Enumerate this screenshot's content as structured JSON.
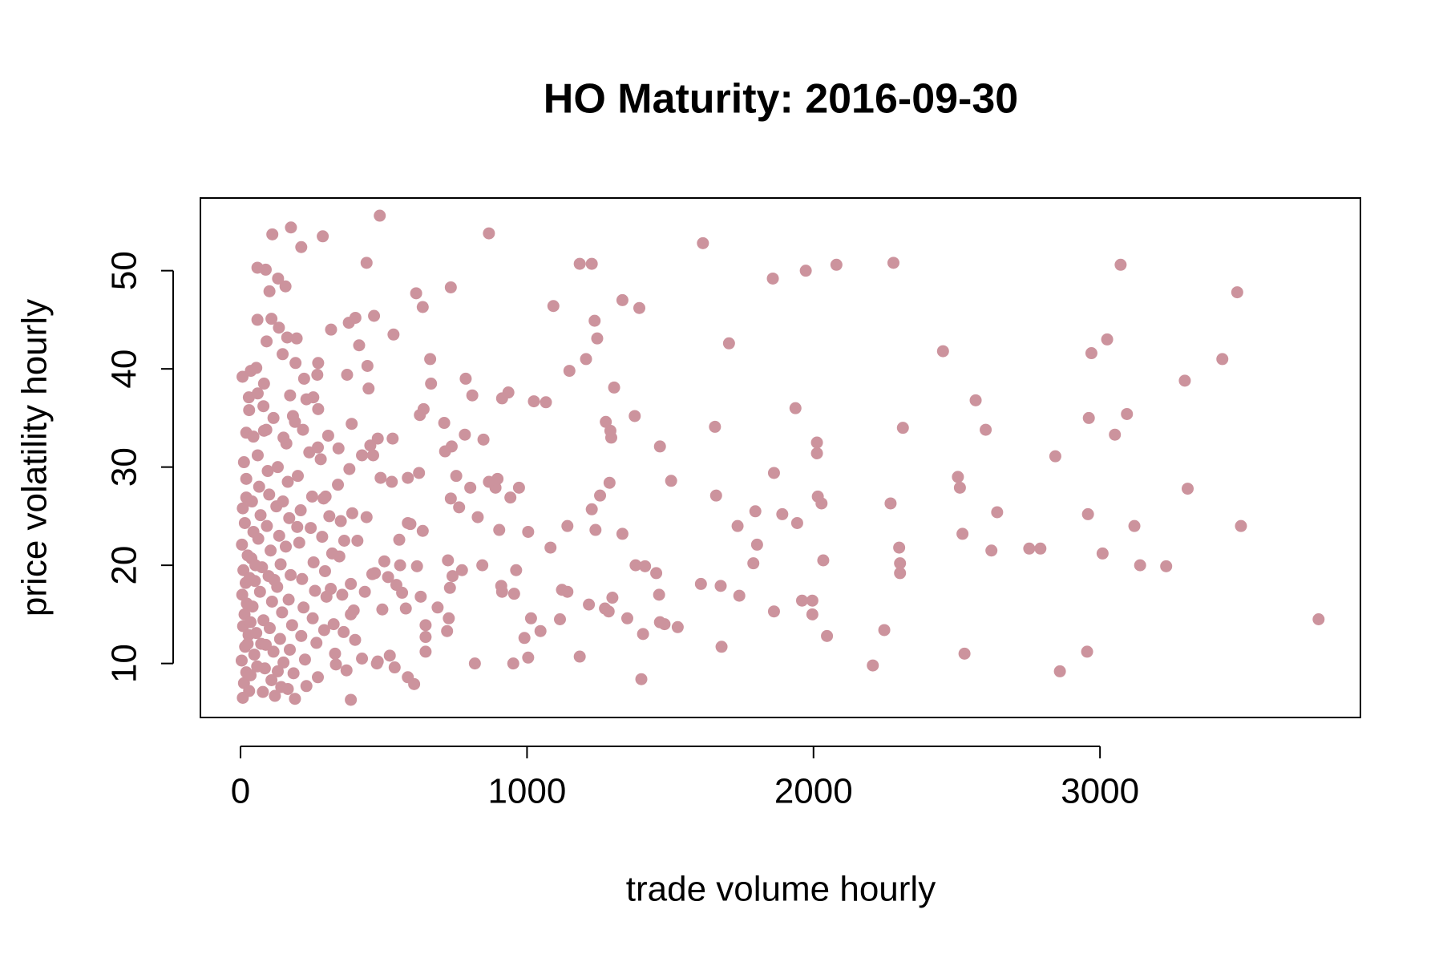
{
  "chart_data": {
    "type": "scatter",
    "title": "HO Maturity: 2016-09-30",
    "x_label": "trade volume hourly",
    "y_label": "price volatility hourly",
    "color": "#cc939d",
    "xlim": [
      -140,
      3909
    ],
    "ylim": [
      4.5,
      57.4
    ],
    "xticks": [
      0,
      1000,
      2000,
      3000
    ],
    "yticks": [
      10,
      20,
      30,
      40,
      50
    ],
    "x": [
      3763,
      3492,
      3479,
      3427,
      3306,
      3296,
      3231,
      3140,
      3120,
      3094,
      3072,
      3052,
      3025,
      3009,
      2970,
      2961,
      2958,
      2955,
      2860,
      2844,
      2792,
      2753,
      2641,
      2621,
      2601,
      2566,
      2527,
      2520,
      2511,
      2504,
      2452,
      2279,
      2312,
      2302,
      2302,
      2299,
      2269,
      2247,
      2207,
      2080,
      2047,
      2034,
      2028,
      2015,
      2012,
      2012,
      1996,
      1996,
      1973,
      1960,
      1943,
      1937,
      1891,
      1862,
      1862,
      1858,
      1803,
      1797,
      1790,
      1741,
      1735,
      1705,
      1679,
      1676,
      1660,
      1656,
      1614,
      1607,
      1526,
      1503,
      1480,
      1464,
      1464,
      1461,
      1451,
      1412,
      1405,
      1399,
      1392,
      1379,
      1376,
      1350,
      1333,
      1333,
      1304,
      1298,
      1294,
      1291,
      1288,
      1285,
      1275,
      1272,
      1255,
      1245,
      1236,
      1239,
      1226,
      1226,
      1216,
      1206,
      1184,
      1184,
      1148,
      1141,
      1141,
      1122,
      1115,
      1092,
      1082,
      1066,
      1047,
      1024,
      1014,
      1004,
      1004,
      991,
      972,
      962,
      952,
      955,
      942,
      935,
      913,
      910,
      913,
      903,
      897,
      890,
      867,
      867,
      844,
      848,
      828,
      818,
      809,
      802,
      786,
      783,
      773,
      763,
      753,
      740,
      737,
      734,
      734,
      731,
      727,
      721,
      724,
      714,
      711,
      688,
      662,
      665,
      646,
      646,
      646,
      636,
      639,
      636,
      629,
      626,
      623,
      613,
      616,
      606,
      593,
      584,
      584,
      584,
      577,
      564,
      557,
      554,
      544,
      534,
      531,
      538,
      528,
      521,
      515,
      502,
      495,
      489,
      486,
      479,
      479,
      476,
      469,
      466,
      463,
      460,
      453,
      434,
      440,
      440,
      443,
      447,
      424,
      424,
      414,
      408,
      401,
      388,
      385,
      378,
      385,
      372,
      362,
      333,
      316,
      297,
      287,
      268,
      212,
      176,
      111,
      157,
      131,
      101,
      88,
      59,
      59,
      91,
      108,
      134,
      163,
      196,
      147,
      192,
      36,
      7,
      82,
      173,
      254,
      29,
      20,
      82,
      183,
      218,
      306,
      342,
      271,
      222,
      271,
      12,
      20,
      8,
      15,
      5,
      25,
      10,
      18,
      6,
      22,
      14,
      9,
      28,
      16,
      4,
      20,
      12,
      30,
      8,
      40,
      45,
      38,
      50,
      42,
      55,
      48,
      35,
      60,
      65,
      70,
      62,
      75,
      68,
      80,
      72,
      85,
      78,
      90,
      95,
      100,
      92,
      105,
      98,
      110,
      102,
      115,
      108,
      120,
      130,
      125,
      135,
      140,
      128,
      145,
      138,
      150,
      142,
      160,
      165,
      170,
      158,
      175,
      168,
      180,
      172,
      185,
      190,
      200,
      210,
      205,
      215,
      220,
      212,
      225,
      230,
      240,
      250,
      245,
      255,
      260,
      252,
      265,
      270,
      280,
      290,
      285,
      295,
      300,
      292,
      310,
      320,
      315,
      325,
      330,
      340,
      350,
      345,
      355,
      360,
      370,
      380,
      390,
      385,
      395,
      400,
      60,
      80,
      115,
      150,
      190,
      230,
      270,
      30,
      55,
      45,
      20,
      35,
      25,
      58,
      88,
      130,
      165,
      32,
      52,
      118,
      148,
      198
    ],
    "values": [
      14.5,
      24.0,
      47.8,
      41.0,
      27.8,
      38.8,
      19.9,
      20.0,
      24.0,
      35.4,
      50.6,
      33.3,
      43.0,
      21.2,
      41.6,
      35.0,
      25.2,
      11.2,
      9.2,
      31.1,
      21.7,
      21.7,
      25.4,
      21.5,
      33.8,
      36.8,
      11.0,
      23.2,
      27.9,
      29.0,
      41.8,
      50.8,
      34.0,
      19.2,
      20.2,
      21.8,
      26.3,
      13.4,
      9.8,
      50.6,
      12.8,
      20.5,
      26.3,
      27.0,
      31.4,
      32.5,
      15.0,
      16.4,
      50.0,
      16.4,
      24.3,
      36.0,
      25.2,
      29.4,
      15.3,
      49.2,
      22.1,
      25.5,
      20.2,
      16.9,
      24.0,
      42.6,
      11.7,
      17.9,
      27.1,
      34.1,
      52.8,
      18.1,
      13.7,
      28.6,
      14.0,
      14.2,
      32.1,
      17.0,
      19.2,
      19.9,
      13.0,
      8.4,
      46.2,
      20.0,
      35.2,
      14.6,
      23.2,
      47.0,
      38.1,
      16.7,
      33.0,
      33.7,
      28.4,
      15.3,
      34.6,
      15.6,
      27.1,
      43.1,
      44.9,
      23.6,
      25.7,
      50.7,
      16.0,
      41.0,
      50.7,
      10.7,
      39.8,
      24.0,
      17.3,
      17.5,
      14.5,
      46.4,
      21.8,
      36.6,
      13.3,
      36.7,
      14.6,
      10.6,
      23.4,
      12.6,
      27.9,
      19.5,
      10.0,
      17.1,
      26.9,
      37.6,
      37.0,
      17.9,
      17.3,
      23.6,
      28.8,
      27.9,
      28.5,
      53.8,
      20.0,
      32.8,
      24.9,
      10.0,
      37.3,
      27.9,
      39.0,
      33.3,
      19.5,
      25.9,
      29.1,
      18.9,
      32.1,
      48.3,
      26.8,
      17.7,
      14.6,
      13.3,
      20.5,
      31.6,
      34.5,
      15.7,
      41.0,
      38.5,
      13.9,
      12.7,
      11.2,
      46.3,
      35.9,
      23.5,
      16.8,
      35.3,
      29.4,
      47.7,
      19.9,
      7.9,
      24.2,
      8.6,
      28.9,
      24.3,
      15.6,
      17.2,
      20.0,
      22.6,
      18.0,
      43.5,
      32.9,
      9.6,
      28.5,
      10.8,
      18.8,
      20.4,
      15.5,
      28.9,
      55.6,
      32.9,
      10.2,
      10.0,
      19.2,
      45.4,
      31.2,
      19.1,
      32.2,
      17.3,
      50.8,
      24.9,
      40.3,
      38.0,
      10.5,
      31.2,
      42.4,
      22.5,
      45.2,
      34.4,
      6.3,
      44.7,
      15.0,
      39.4,
      22.5,
      9.9,
      44.0,
      27.0,
      53.5,
      39.4,
      52.4,
      54.4,
      53.7,
      48.4,
      49.2,
      47.9,
      50.1,
      50.3,
      45.0,
      42.8,
      45.1,
      44.2,
      43.2,
      43.1,
      41.5,
      40.6,
      39.8,
      39.2,
      38.5,
      37.3,
      37.1,
      37.1,
      33.5,
      33.7,
      35.2,
      33.8,
      33.2,
      31.9,
      35.9,
      39.0,
      40.6,
      30.5,
      28.8,
      25.8,
      24.3,
      22.1,
      21.0,
      19.5,
      18.2,
      17.0,
      16.1,
      15.0,
      13.8,
      12.9,
      11.7,
      10.3,
      9.1,
      8.0,
      7.2,
      6.5,
      26.5,
      23.4,
      20.7,
      18.4,
      15.8,
      13.1,
      10.9,
      8.8,
      31.2,
      28.0,
      25.1,
      22.7,
      19.8,
      17.3,
      14.4,
      12.0,
      9.5,
      7.1,
      33.8,
      29.6,
      27.2,
      24.0,
      21.5,
      18.9,
      16.3,
      13.6,
      11.2,
      8.3,
      6.7,
      30.0,
      26.0,
      23.0,
      20.1,
      17.8,
      15.2,
      12.5,
      10.1,
      7.6,
      32.4,
      28.5,
      24.8,
      21.9,
      19.0,
      16.5,
      13.9,
      11.4,
      9.0,
      6.4,
      29.1,
      25.6,
      22.3,
      18.6,
      15.7,
      12.8,
      10.4,
      7.7,
      31.5,
      27.0,
      23.8,
      20.3,
      17.4,
      14.6,
      12.1,
      8.6,
      30.8,
      26.8,
      22.9,
      19.4,
      16.8,
      13.4,
      25.0,
      21.2,
      17.6,
      14.0,
      11.0,
      28.2,
      24.5,
      20.9,
      17.0,
      13.2,
      9.3,
      29.8,
      25.3,
      18.1,
      15.4,
      12.4,
      37.5,
      36.2,
      35.0,
      33.0,
      34.6,
      36.9,
      32.0,
      35.8,
      40.1,
      33.1,
      26.9,
      14.2,
      12.0,
      9.7,
      11.9,
      9.2,
      7.4,
      18.7,
      20.0,
      18.5,
      26.5,
      23.9
    ]
  }
}
